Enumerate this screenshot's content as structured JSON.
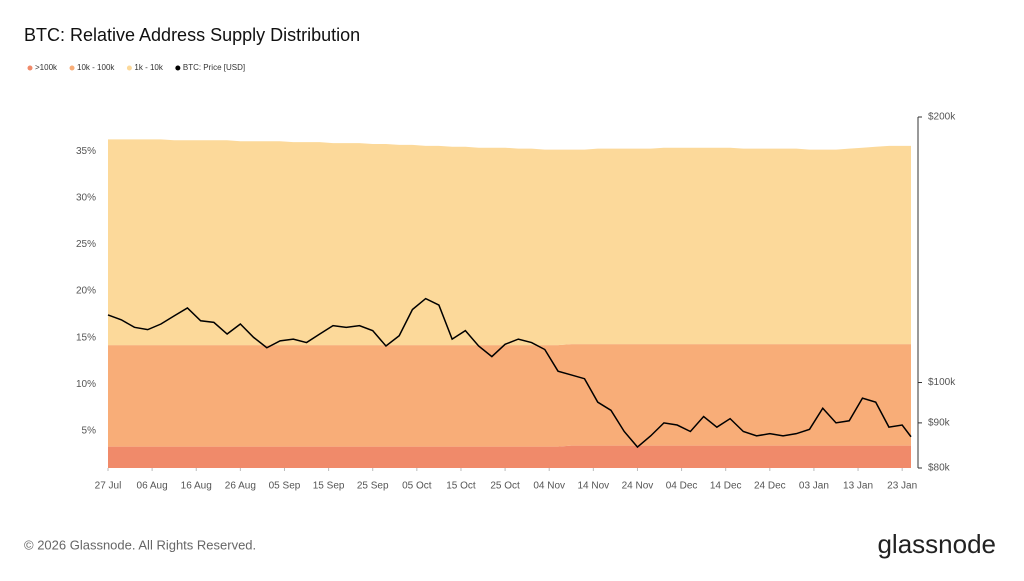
{
  "chart_data": {
    "type": "stacked-area-line",
    "title": "BTC: Relative Address Supply Distribution",
    "watermark": "glassnode",
    "footer": "© 2026 Glassnode. All Rights Reserved.",
    "brand": "glassnode",
    "x": [
      0,
      3,
      6,
      9,
      12,
      15,
      18,
      21,
      24,
      27,
      30,
      33,
      36,
      39,
      42,
      45,
      48,
      51,
      54,
      57,
      60,
      63,
      66,
      69,
      72,
      75,
      78,
      81,
      84,
      87,
      90,
      93,
      96,
      99,
      102,
      105,
      108,
      111,
      114,
      117,
      120,
      123,
      126,
      129,
      132,
      135,
      138,
      141,
      144,
      147,
      150,
      153,
      156,
      159,
      162,
      165,
      168,
      171,
      174,
      177,
      180,
      182
    ],
    "xlim": [
      0,
      182
    ],
    "xticks": [
      {
        "value": 0,
        "label": "27 Jul"
      },
      {
        "value": 10,
        "label": "06 Aug"
      },
      {
        "value": 20,
        "label": "16 Aug"
      },
      {
        "value": 30,
        "label": "26 Aug"
      },
      {
        "value": 40,
        "label": "05 Sep"
      },
      {
        "value": 50,
        "label": "15 Sep"
      },
      {
        "value": 60,
        "label": "25 Sep"
      },
      {
        "value": 70,
        "label": "05 Oct"
      },
      {
        "value": 80,
        "label": "15 Oct"
      },
      {
        "value": 90,
        "label": "25 Oct"
      },
      {
        "value": 100,
        "label": "04 Nov"
      },
      {
        "value": 110,
        "label": "14 Nov"
      },
      {
        "value": 120,
        "label": "24 Nov"
      },
      {
        "value": 130,
        "label": "04 Dec"
      },
      {
        "value": 140,
        "label": "14 Dec"
      },
      {
        "value": 150,
        "label": "24 Dec"
      },
      {
        "value": 160,
        "label": "03 Jan"
      },
      {
        "value": 170,
        "label": "13 Jan"
      },
      {
        "value": 180,
        "label": "23 Jan"
      }
    ],
    "ylim": [
      1,
      38.7
    ],
    "yticks": [
      {
        "value": 5,
        "label": "5%"
      },
      {
        "value": 10,
        "label": "10%"
      },
      {
        "value": 15,
        "label": "15%"
      },
      {
        "value": 20,
        "label": "20%"
      },
      {
        "value": 25,
        "label": "25%"
      },
      {
        "value": 30,
        "label": "30%"
      },
      {
        "value": 35,
        "label": "35%"
      }
    ],
    "y2lim": [
      80000,
      200000
    ],
    "y2log": true,
    "y2ticks": [
      {
        "value": 80000,
        "label": "$80k"
      },
      {
        "value": 90000,
        "label": "$90k"
      },
      {
        "value": 100000,
        "label": "$100k"
      },
      {
        "value": 200000,
        "label": "$200k"
      }
    ],
    "series": [
      {
        "name": ">100k",
        "color": "#f08a6a",
        "values": [
          3.3,
          3.3,
          3.3,
          3.3,
          3.3,
          3.3,
          3.3,
          3.3,
          3.3,
          3.3,
          3.3,
          3.3,
          3.3,
          3.3,
          3.3,
          3.3,
          3.3,
          3.3,
          3.3,
          3.3,
          3.3,
          3.3,
          3.3,
          3.3,
          3.3,
          3.3,
          3.3,
          3.3,
          3.3,
          3.3,
          3.3,
          3.3,
          3.3,
          3.3,
          3.3,
          3.4,
          3.4,
          3.4,
          3.4,
          3.4,
          3.4,
          3.4,
          3.4,
          3.4,
          3.4,
          3.4,
          3.4,
          3.4,
          3.4,
          3.4,
          3.4,
          3.4,
          3.4,
          3.4,
          3.4,
          3.4,
          3.4,
          3.4,
          3.4,
          3.4,
          3.4,
          3.4
        ]
      },
      {
        "name": "10k - 100k",
        "color": "#f8ad78",
        "values": [
          10.9,
          10.9,
          10.9,
          10.9,
          10.9,
          10.9,
          10.9,
          10.9,
          10.9,
          10.9,
          10.9,
          10.9,
          10.9,
          10.9,
          10.9,
          10.9,
          10.9,
          10.9,
          10.9,
          10.9,
          10.9,
          10.9,
          10.9,
          10.9,
          10.9,
          10.9,
          10.9,
          10.9,
          10.9,
          10.9,
          10.9,
          10.9,
          10.9,
          10.9,
          10.9,
          10.9,
          10.9,
          10.9,
          10.9,
          10.9,
          10.9,
          10.9,
          10.9,
          10.9,
          10.9,
          10.9,
          10.9,
          10.9,
          10.9,
          10.9,
          10.9,
          10.9,
          10.9,
          10.9,
          10.9,
          10.9,
          10.9,
          10.9,
          10.9,
          10.9,
          10.9,
          10.9
        ]
      },
      {
        "name": "1k - 10k",
        "color": "#fcd99a",
        "values": [
          22.1,
          22.1,
          22.1,
          22.1,
          22.1,
          22.0,
          22.0,
          22.0,
          22.0,
          22.0,
          21.9,
          21.9,
          21.9,
          21.9,
          21.8,
          21.8,
          21.8,
          21.7,
          21.7,
          21.7,
          21.6,
          21.6,
          21.5,
          21.5,
          21.4,
          21.4,
          21.3,
          21.3,
          21.2,
          21.2,
          21.2,
          21.1,
          21.1,
          21.0,
          21.0,
          20.9,
          20.9,
          21.0,
          21.0,
          21.0,
          21.0,
          21.0,
          21.1,
          21.1,
          21.1,
          21.1,
          21.1,
          21.1,
          21.0,
          21.0,
          21.0,
          21.0,
          21.0,
          20.9,
          20.9,
          20.9,
          21.0,
          21.1,
          21.2,
          21.3,
          21.3,
          21.3
        ]
      },
      {
        "name": "BTC: Price [USD]",
        "color": "#000000",
        "axis": "y2",
        "values": [
          119300,
          117800,
          115500,
          114800,
          116500,
          119000,
          121500,
          117500,
          117000,
          113500,
          116500,
          112500,
          109500,
          111500,
          112000,
          111000,
          113500,
          116000,
          115500,
          116000,
          114500,
          110000,
          113000,
          121000,
          124500,
          122400,
          112000,
          114500,
          110000,
          107000,
          110500,
          112000,
          111000,
          109000,
          103000,
          102000,
          101000,
          95000,
          93000,
          88000,
          84500,
          87000,
          90000,
          89500,
          88000,
          91500,
          89000,
          91000,
          88000,
          87000,
          87500,
          87000,
          87500,
          88500,
          93500,
          90000,
          90500,
          96000,
          95000,
          89000,
          89500,
          86800
        ]
      }
    ]
  }
}
